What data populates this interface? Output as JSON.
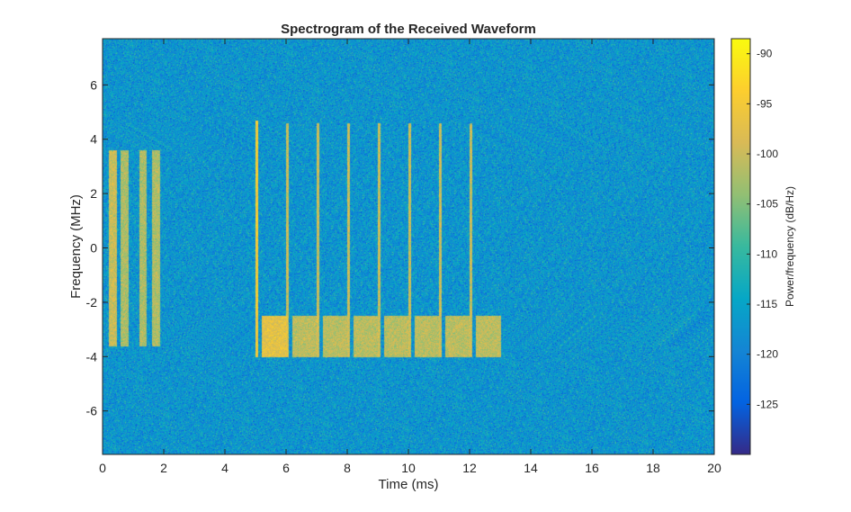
{
  "chart_data": {
    "type": "heatmap",
    "title": "Spectrogram of the Received Waveform",
    "xlabel": "Time (ms)",
    "ylabel": "Frequency (MHz)",
    "xlim": [
      0,
      20
    ],
    "ylim": [
      -7.6,
      7.7
    ],
    "xticks": [
      0,
      2,
      4,
      6,
      8,
      10,
      12,
      14,
      16,
      18,
      20
    ],
    "yticks": [
      -6,
      -4,
      -2,
      0,
      2,
      4,
      6
    ],
    "grid": false,
    "colormap": "parula",
    "colorbar": {
      "label": "Power/frequency (dB/Hz)",
      "range": [
        -130,
        -88.5
      ],
      "ticks": [
        -90,
        -95,
        -100,
        -105,
        -110,
        -115,
        -120,
        -125
      ]
    },
    "noise_floor_db": -117,
    "signals": [
      {
        "t_start": 0.2,
        "t_end": 0.43,
        "f_low": -3.6,
        "f_high": 3.6,
        "power_db": -100
      },
      {
        "t_start": 0.58,
        "t_end": 0.82,
        "f_low": -3.6,
        "f_high": 3.6,
        "power_db": -102
      },
      {
        "t_start": 1.18,
        "t_end": 1.42,
        "f_low": -3.6,
        "f_high": 3.6,
        "power_db": -102
      },
      {
        "t_start": 1.6,
        "t_end": 1.84,
        "f_low": -3.6,
        "f_high": 3.6,
        "power_db": -102
      },
      {
        "t_start": 4.98,
        "t_end": 5.05,
        "f_low": -4.0,
        "f_high": 4.7,
        "power_db": -95
      },
      {
        "t_start": 5.98,
        "t_end": 6.05,
        "f_low": -4.0,
        "f_high": 4.6,
        "power_db": -100
      },
      {
        "t_start": 6.98,
        "t_end": 7.05,
        "f_low": -4.0,
        "f_high": 4.6,
        "power_db": -100
      },
      {
        "t_start": 7.98,
        "t_end": 8.05,
        "f_low": -4.0,
        "f_high": 4.6,
        "power_db": -100
      },
      {
        "t_start": 8.98,
        "t_end": 9.05,
        "f_low": -4.0,
        "f_high": 4.6,
        "power_db": -100
      },
      {
        "t_start": 9.98,
        "t_end": 10.05,
        "f_low": -4.0,
        "f_high": 4.6,
        "power_db": -100
      },
      {
        "t_start": 10.98,
        "t_end": 11.05,
        "f_low": -4.0,
        "f_high": 4.6,
        "power_db": -100
      },
      {
        "t_start": 11.98,
        "t_end": 12.05,
        "f_low": -4.0,
        "f_high": 4.6,
        "power_db": -100
      },
      {
        "t_start": 5.2,
        "t_end": 6.02,
        "f_low": -4.0,
        "f_high": -2.5,
        "power_db": -97
      },
      {
        "t_start": 6.2,
        "t_end": 7.02,
        "f_low": -4.0,
        "f_high": -2.5,
        "power_db": -101
      },
      {
        "t_start": 7.2,
        "t_end": 8.02,
        "f_low": -4.0,
        "f_high": -2.5,
        "power_db": -101
      },
      {
        "t_start": 8.2,
        "t_end": 9.02,
        "f_low": -4.0,
        "f_high": -2.5,
        "power_db": -101
      },
      {
        "t_start": 9.2,
        "t_end": 10.02,
        "f_low": -4.0,
        "f_high": -2.5,
        "power_db": -101
      },
      {
        "t_start": 10.2,
        "t_end": 11.02,
        "f_low": -4.0,
        "f_high": -2.5,
        "power_db": -101
      },
      {
        "t_start": 11.2,
        "t_end": 12.02,
        "f_low": -4.0,
        "f_high": -2.5,
        "power_db": -101
      },
      {
        "t_start": 12.2,
        "t_end": 13.0,
        "f_low": -4.0,
        "f_high": -2.5,
        "power_db": -101
      }
    ]
  }
}
